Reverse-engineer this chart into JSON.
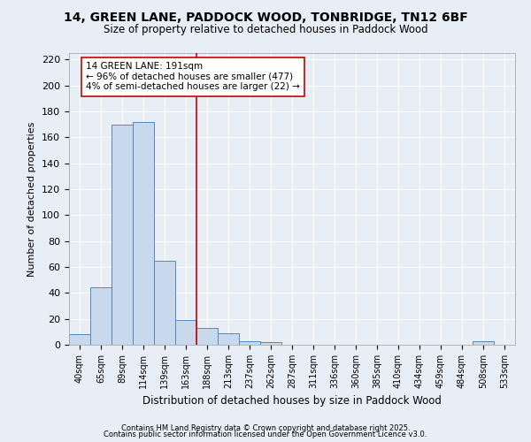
{
  "title": "14, GREEN LANE, PADDOCK WOOD, TONBRIDGE, TN12 6BF",
  "subtitle": "Size of property relative to detached houses in Paddock Wood",
  "xlabel": "Distribution of detached houses by size in Paddock Wood",
  "ylabel": "Number of detached properties",
  "bin_labels": [
    "40sqm",
    "65sqm",
    "89sqm",
    "114sqm",
    "139sqm",
    "163sqm",
    "188sqm",
    "213sqm",
    "237sqm",
    "262sqm",
    "287sqm",
    "311sqm",
    "336sqm",
    "360sqm",
    "385sqm",
    "410sqm",
    "434sqm",
    "459sqm",
    "484sqm",
    "508sqm",
    "533sqm"
  ],
  "bar_heights": [
    8,
    44,
    170,
    172,
    65,
    19,
    13,
    9,
    3,
    2,
    0,
    0,
    0,
    0,
    0,
    0,
    0,
    0,
    0,
    3,
    0
  ],
  "bar_color": "#c8d9ee",
  "bar_edge_color": "#5588bb",
  "background_color": "#e8eef5",
  "grid_color": "#ffffff",
  "vline_bin": 6,
  "vline_color": "#cc0000",
  "annotation_text": "14 GREEN LANE: 191sqm\n← 96% of detached houses are smaller (477)\n4% of semi-detached houses are larger (22) →",
  "annotation_box_facecolor": "#ffffff",
  "annotation_box_edgecolor": "#cc0000",
  "footer_line1": "Contains HM Land Registry data © Crown copyright and database right 2025.",
  "footer_line2": "Contains public sector information licensed under the Open Government Licence v3.0.",
  "ylim": [
    0,
    225
  ],
  "yticks": [
    0,
    20,
    40,
    60,
    80,
    100,
    120,
    140,
    160,
    180,
    200,
    220
  ]
}
